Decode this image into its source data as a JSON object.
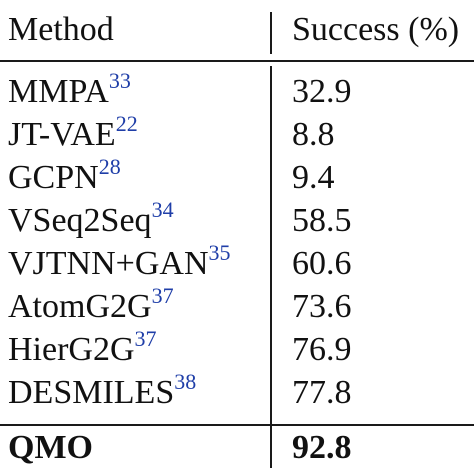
{
  "header": {
    "method": "Method",
    "success": "Success (%)"
  },
  "rows": [
    {
      "method": "MMPA",
      "ref": "33",
      "success": "32.9"
    },
    {
      "method": "JT-VAE",
      "ref": "22",
      "success": "8.8"
    },
    {
      "method": "GCPN",
      "ref": "28",
      "success": "9.4"
    },
    {
      "method": "VSeq2Seq",
      "ref": "34",
      "success": "58.5"
    },
    {
      "method": "VJTNN+GAN",
      "ref": "35",
      "success": "60.6"
    },
    {
      "method": "AtomG2G",
      "ref": "37",
      "success": "73.6"
    },
    {
      "method": "HierG2G",
      "ref": "37",
      "success": "76.9"
    },
    {
      "method": "DESMILES",
      "ref": "38",
      "success": "77.8"
    }
  ],
  "final_row": {
    "method": "QMO",
    "success": "92.8"
  },
  "colors": {
    "citation": "#1f3ea8",
    "text": "#111111",
    "rule": "#1a1a1a"
  }
}
